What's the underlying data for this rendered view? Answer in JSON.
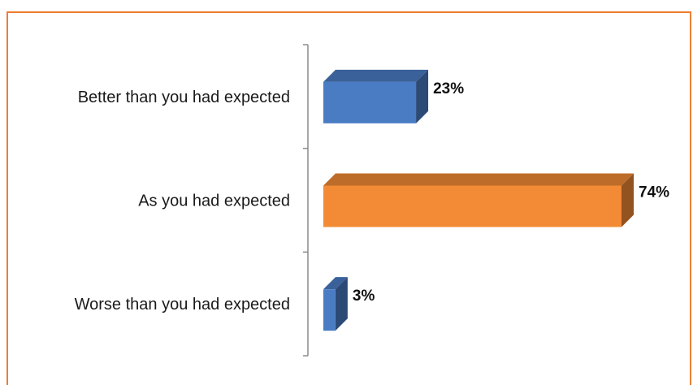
{
  "chart_data": {
    "type": "bar",
    "orientation": "horizontal",
    "style": "3d",
    "categories": [
      "Better than you had expected",
      "As you had expected",
      "Worse than you had expected"
    ],
    "values": [
      23,
      74,
      3
    ],
    "value_labels": [
      "23%",
      "74%",
      "3%"
    ],
    "unit": "%",
    "xlim": [
      0,
      100
    ],
    "grid": false,
    "legend": "none",
    "colors": {
      "primary": "#4a7cc4",
      "highlight": "#f38a35",
      "frame": "#ee7d31"
    }
  }
}
